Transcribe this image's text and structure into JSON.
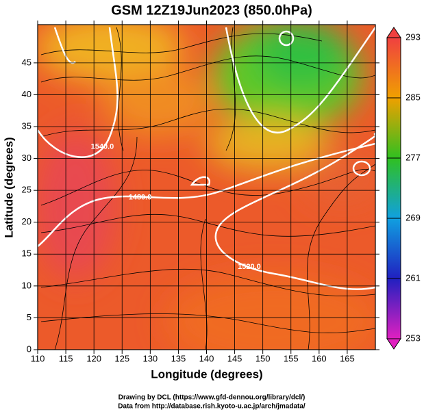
{
  "chart_data": {
    "type": "map",
    "title": "GSM 12Z19Jun2023 (850.0hPa)",
    "xlabel": "Longitude (degrees)",
    "ylabel": "Latitude  (degrees)",
    "xlim": [
      110,
      170
    ],
    "ylim": [
      0,
      51
    ],
    "xticks": [
      110,
      115,
      120,
      125,
      130,
      135,
      140,
      145,
      150,
      155,
      160,
      165
    ],
    "yticks": [
      0,
      5,
      10,
      15,
      20,
      25,
      30,
      35,
      40,
      45
    ],
    "grid": true,
    "colorbar": {
      "lim": [
        253,
        293
      ],
      "ticks": [
        253,
        261,
        269,
        277,
        285,
        293
      ],
      "colors": [
        "#e020c0",
        "#2020c0",
        "#10a0e0",
        "#30c020",
        "#f0a000",
        "#f04040"
      ]
    },
    "contour_labels": [
      {
        "text": "1480.0",
        "x": 128.2,
        "y": 23.9
      },
      {
        "text": "1520.0",
        "x": 147.6,
        "y": 13
      },
      {
        "text": "1540.0",
        "x": 121.5,
        "y": 31.8
      }
    ]
  },
  "footer": [
    "Drawing by DCL (https://www.gfd-dennou.org/library/dcl/)",
    "Data from http://database.rish.kyoto-u.ac.jp/arch/jmadata/"
  ]
}
